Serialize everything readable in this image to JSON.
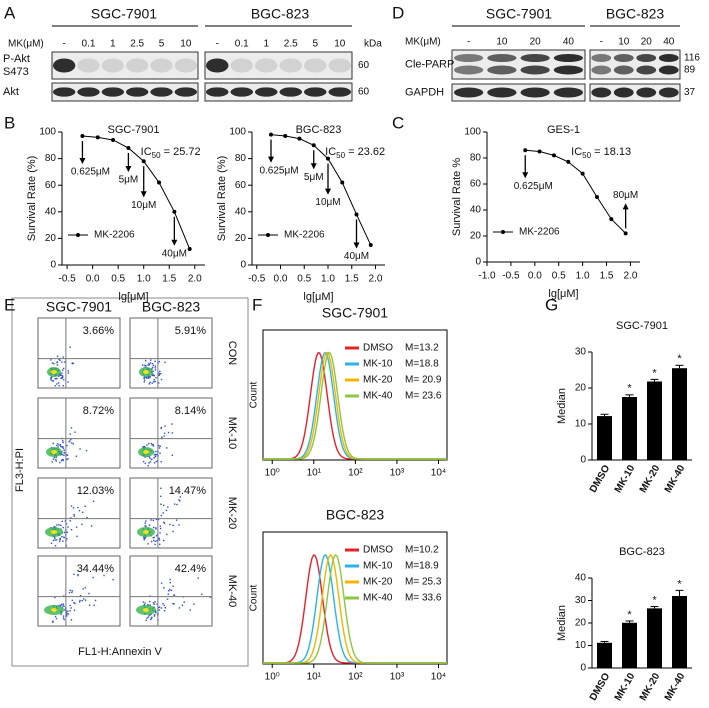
{
  "panel_labels": [
    "A",
    "B",
    "C",
    "D",
    "E",
    "F",
    "G"
  ],
  "panel_a": {
    "cell_lines": [
      "SGC-7901",
      "BGC-823"
    ],
    "dose_label": "MK(μM)",
    "doses": [
      [
        "-",
        0.1,
        1,
        2.5,
        5,
        10
      ],
      [
        "-",
        0.1,
        1,
        2.5,
        5,
        10
      ]
    ],
    "unit": "kDa",
    "rows": [
      {
        "label": [
          "P-Akt",
          "S473"
        ],
        "kda": 60
      },
      {
        "label": [
          "Akt"
        ],
        "kda": 60
      }
    ]
  },
  "panel_d": {
    "cell_lines": [
      "SGC-7901",
      "BGC-823"
    ],
    "dose_label": "MK(μM)",
    "doses": [
      [
        "-",
        10,
        20,
        40
      ],
      [
        "-",
        10,
        20,
        40
      ]
    ],
    "rows": [
      {
        "label": "Cle-PARP",
        "kda": [
          116,
          89
        ]
      },
      {
        "label": "GAPDH",
        "kda": [
          37
        ]
      }
    ]
  },
  "chart_data": [
    {
      "type": "line",
      "title": "SGC-7901",
      "ylabel": "Survival Rate (%)",
      "xlabel": "lg[μM]",
      "x": [
        -0.2,
        0.1,
        0.4,
        0.7,
        1.0,
        1.3,
        1.6,
        1.9
      ],
      "series": [
        {
          "name": "MK-2206",
          "color": "#000000",
          "values": [
            97,
            96,
            94,
            88,
            78,
            62,
            40,
            12
          ]
        }
      ],
      "xlim": [
        -0.6,
        2.2
      ],
      "xticks": [
        -0.5,
        {
          "value": 0,
          "label": "0.0"
        },
        0.5,
        {
          "value": 1,
          "label": "1.0"
        },
        1.5,
        {
          "value": 2,
          "label": "2.0"
        }
      ],
      "ylim": [
        0,
        100
      ],
      "yticks": [
        0,
        20,
        40,
        60,
        80,
        100
      ],
      "ic50": {
        "label": "IC",
        "subscript": "50",
        "text": " = 25.72"
      },
      "annotations": [
        "0.625μM",
        "5μM",
        "10μM",
        "40μM"
      ]
    },
    {
      "type": "line",
      "title": "BGC-823",
      "ylabel": "Survival Rate (%)",
      "xlabel": "lg[μM]",
      "x": [
        -0.2,
        0.1,
        0.4,
        0.7,
        1.0,
        1.3,
        1.6,
        1.9
      ],
      "series": [
        {
          "name": "MK-2206",
          "color": "#000000",
          "values": [
            98,
            97,
            95,
            90,
            80,
            62,
            38,
            15
          ]
        }
      ],
      "xlim": [
        -0.6,
        2.2
      ],
      "xticks": [
        -0.5,
        {
          "value": 0,
          "label": "0.0"
        },
        0.5,
        {
          "value": 1,
          "label": "1.0"
        },
        1.5,
        {
          "value": 2,
          "label": "2.0"
        }
      ],
      "ylim": [
        0,
        100
      ],
      "yticks": [
        0,
        20,
        40,
        60,
        80,
        100
      ],
      "ic50": {
        "label": "IC",
        "subscript": "50",
        "text": " = 23.62"
      },
      "annotations": [
        "0.625μM",
        "5μM",
        "10μM",
        "40μM"
      ]
    },
    {
      "type": "line",
      "title": "GES-1",
      "ylabel": "Survival Rate %",
      "xlabel": "lg[μM]",
      "x": [
        -0.2,
        0.1,
        0.4,
        0.7,
        1.0,
        1.3,
        1.6,
        1.9
      ],
      "series": [
        {
          "name": "MK-2206",
          "color": "#000000",
          "values": [
            86,
            85,
            82,
            77,
            68,
            50,
            33,
            22
          ]
        }
      ],
      "xlim": [
        -1.0,
        2.2
      ],
      "xticks": [
        {
          "value": -1,
          "label": "-1.0"
        },
        -0.5,
        {
          "value": 0,
          "label": "0.0"
        },
        0.5,
        {
          "value": 1,
          "label": "1.0"
        },
        1.5,
        {
          "value": 2,
          "label": "2.0"
        }
      ],
      "ylim": [
        0,
        100
      ],
      "yticks": [
        0,
        20,
        40,
        60,
        80,
        100
      ],
      "ic50": {
        "label": "IC",
        "subscript": "50",
        "text": " = 18.13"
      },
      "annotations": [
        "0.625μM",
        "80μM"
      ]
    },
    {
      "type": "bar",
      "title": "SGC-7901",
      "ylabel": "Median",
      "categories": [
        "DMSO",
        "MK-10",
        "MK-20",
        "MK-40"
      ],
      "values": [
        12.2,
        17.5,
        21.8,
        25.5
      ],
      "errors": [
        0.5,
        0.6,
        0.6,
        0.8
      ],
      "annotations": [
        null,
        "*",
        "*",
        "*"
      ],
      "color": "#000000",
      "ylim": [
        0,
        30
      ],
      "yticks": [
        0,
        10,
        20,
        30
      ]
    },
    {
      "type": "bar",
      "title": "BGC-823",
      "ylabel": "Median",
      "categories": [
        "DMSO",
        "MK-10",
        "MK-20",
        "MK-40"
      ],
      "values": [
        11.2,
        20.1,
        26.5,
        32.0
      ],
      "errors": [
        0.6,
        0.8,
        0.8,
        2.5
      ],
      "annotations": [
        null,
        "*",
        "*",
        "*"
      ],
      "color": "#000000",
      "ylim": [
        0,
        40
      ],
      "yticks": [
        0,
        10,
        20,
        30,
        40
      ]
    }
  ],
  "panel_e": {
    "cell_lines": [
      "SGC-7901",
      "BGC-823"
    ],
    "conditions": [
      "CON",
      "MK-10",
      "MK-20",
      "MK-40"
    ],
    "percentages": [
      [
        "3.66%",
        "5.91%"
      ],
      [
        "8.72%",
        "8.14%"
      ],
      [
        "12.03%",
        "14.47%"
      ],
      [
        "34.44%",
        "42.4%"
      ]
    ],
    "ylabel": "FL3-H:PI",
    "xlabel": "FL1-H:Annexin V"
  },
  "panel_f": {
    "ylabel": "Count",
    "log_x": true,
    "xlim": [
      0.6,
      16000
    ],
    "xticks": [
      {
        "value": 1,
        "label": "10⁰"
      },
      {
        "value": 10,
        "label": "10¹"
      },
      {
        "value": 100,
        "label": "10²"
      },
      {
        "value": 1000,
        "label": "10³"
      },
      {
        "value": 10000,
        "label": "10⁴"
      }
    ],
    "plots": [
      {
        "title": "SGC-7901",
        "series": [
          {
            "name": "DMSO",
            "color": "#e8202a",
            "median": 13.2,
            "label": "M=13.2"
          },
          {
            "name": "MK-10",
            "color": "#29b5e8",
            "median": 18.8,
            "label": "M=18.8"
          },
          {
            "name": "MK-20",
            "color": "#f5b400",
            "median": 20.9,
            "label": "M= 20.9"
          },
          {
            "name": "MK-40",
            "color": "#8dc63f",
            "median": 23.6,
            "label": "M= 23.6"
          }
        ]
      },
      {
        "title": "BGC-823",
        "series": [
          {
            "name": "DMSO",
            "color": "#e8202a",
            "median": 10.2,
            "label": "M=10.2"
          },
          {
            "name": "MK-10",
            "color": "#29b5e8",
            "median": 18.9,
            "label": "M=18.9"
          },
          {
            "name": "MK-20",
            "color": "#f5b400",
            "median": 25.3,
            "label": "M= 25.3"
          },
          {
            "name": "MK-40",
            "color": "#8dc63f",
            "median": 33.6,
            "label": "M= 33.6"
          }
        ]
      }
    ]
  }
}
